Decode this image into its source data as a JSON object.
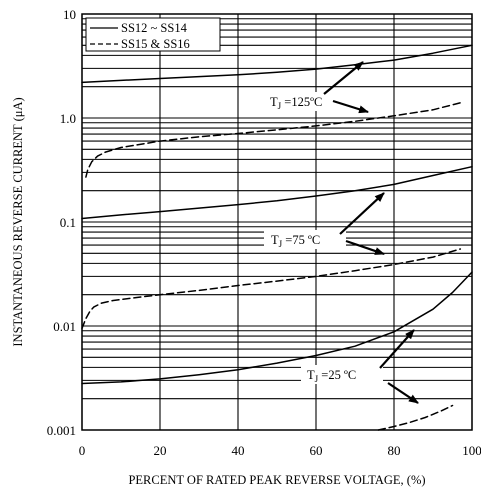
{
  "chart_data": {
    "type": "line",
    "xlabel": "PERCENT OF RATED PEAK REVERSE VOLTAGE, (%)",
    "ylabel": "INSTANTANEOUS REVERSE CURRENT (μA)",
    "xlim": [
      0,
      100
    ],
    "ylim": [
      0.001,
      10
    ],
    "y_scale": "log",
    "grid": "horizontal",
    "x_ticks": [
      "0",
      "20",
      "40",
      "60",
      "80",
      "100"
    ],
    "y_ticks": [
      {
        "value": 10,
        "label": "10"
      },
      {
        "value": 1,
        "label": "1.0"
      },
      {
        "value": 0.1,
        "label": "0.1"
      },
      {
        "value": 0.01,
        "label": "0.01"
      },
      {
        "value": 0.001,
        "label": "0.001"
      }
    ],
    "legend": {
      "position": "top-left",
      "entries": [
        {
          "label": "SS12 ~ SS14",
          "style": "solid"
        },
        {
          "label": "SS15 & SS16",
          "style": "dashed"
        }
      ]
    },
    "series": [
      {
        "name": "SS12 ~ SS14",
        "style": "solid",
        "condition": "125C",
        "x": [
          0,
          10,
          20,
          30,
          40,
          50,
          60,
          70,
          80,
          90,
          100
        ],
        "y": [
          2.2,
          2.3,
          2.4,
          2.5,
          2.6,
          2.75,
          2.95,
          3.25,
          3.6,
          4.2,
          5.0
        ]
      },
      {
        "name": "SS15 & SS16",
        "style": "dashed",
        "condition": "125C",
        "x": [
          1,
          1.5,
          2.5,
          4,
          6,
          10,
          20,
          30,
          40,
          50,
          60,
          70,
          80,
          90,
          97
        ],
        "y": [
          0.27,
          0.32,
          0.38,
          0.43,
          0.47,
          0.52,
          0.6,
          0.66,
          0.71,
          0.77,
          0.84,
          0.93,
          1.05,
          1.2,
          1.4
        ]
      },
      {
        "name": "SS12 ~ SS14",
        "style": "solid",
        "condition": "75C",
        "x": [
          0,
          10,
          20,
          30,
          40,
          50,
          60,
          70,
          80,
          90,
          100
        ],
        "y": [
          0.108,
          0.117,
          0.126,
          0.136,
          0.147,
          0.16,
          0.178,
          0.2,
          0.23,
          0.28,
          0.34
        ]
      },
      {
        "name": "SS15 & SS16",
        "style": "dashed",
        "condition": "75C",
        "x": [
          0,
          1,
          2,
          3,
          5,
          8,
          12,
          20,
          30,
          40,
          50,
          60,
          70,
          80,
          90,
          97
        ],
        "y": [
          0.0095,
          0.0118,
          0.0138,
          0.0152,
          0.0166,
          0.0176,
          0.0184,
          0.02,
          0.022,
          0.0245,
          0.027,
          0.03,
          0.034,
          0.039,
          0.046,
          0.055
        ]
      },
      {
        "name": "SS12 ~ SS14",
        "style": "solid",
        "condition": "25C",
        "x": [
          0,
          10,
          20,
          30,
          40,
          50,
          60,
          70,
          80,
          90,
          95,
          100
        ],
        "y": [
          0.0028,
          0.0029,
          0.0031,
          0.0034,
          0.0038,
          0.0044,
          0.0052,
          0.0064,
          0.0088,
          0.0145,
          0.021,
          0.033
        ]
      },
      {
        "name": "SS15 & SS16",
        "style": "dashed",
        "condition": "25C",
        "x": [
          76,
          80,
          84,
          88,
          92,
          95
        ],
        "y": [
          0.001,
          0.00108,
          0.00118,
          0.00132,
          0.00152,
          0.00172
        ]
      }
    ],
    "annotations": [
      {
        "label_main": "T",
        "label_sub": "J",
        "label_rest": " =125ºC"
      },
      {
        "label_main": "T",
        "label_sub": "J",
        "label_rest": " =75 ºC"
      },
      {
        "label_main": "T",
        "label_sub": "J",
        "label_rest": " =25 ºC"
      }
    ]
  }
}
